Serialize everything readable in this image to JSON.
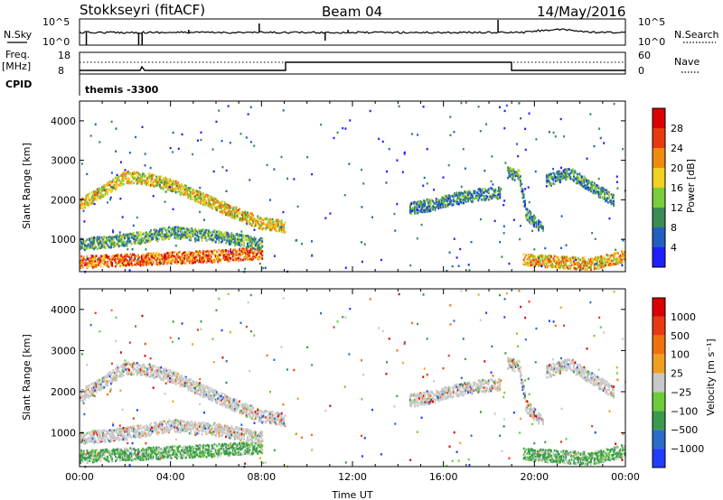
{
  "header": {
    "station": "Stokkseyri (fitACF)",
    "beam": "Beam 04",
    "date": "14/May/2016"
  },
  "noise_panel": {
    "left_label": "N.Sky",
    "left_ticks": [
      "10^5",
      "10^0"
    ],
    "right_label": "N.Search",
    "right_ticks": [
      "10^5",
      "10^0"
    ]
  },
  "freq_panel": {
    "left_label_1": "Freq.",
    "left_label_2": "[MHz]",
    "left_ticks": [
      "18",
      "8"
    ],
    "right_label": "Nave",
    "right_ticks": [
      "60",
      "0"
    ],
    "cpid_label": "CPID",
    "cpid_value": "themis -3300"
  },
  "chart_data": [
    {
      "type": "heatmap",
      "panel": "power",
      "ylabel": "Slant Range [km]",
      "xlabel": "",
      "ylim": [
        180,
        4500
      ],
      "yticks": [
        "1000",
        "2000",
        "3000",
        "4000"
      ],
      "xticks": [],
      "colorbar": {
        "label": "Power [dB]",
        "ticks": [
          "4",
          "8",
          "12",
          "16",
          "20",
          "24",
          "28"
        ],
        "colors": [
          "#1f1fff",
          "#2060c0",
          "#3a8c54",
          "#7acc3a",
          "#f0d020",
          "#f08a10",
          "#e83a10",
          "#d80000"
        ]
      },
      "bands": [
        {
          "name": "arc",
          "points": [
            [
              0,
              1900
            ],
            [
              1,
              2250
            ],
            [
              2,
              2600
            ],
            [
              3,
              2550
            ],
            [
              4,
              2400
            ],
            [
              5,
              2150
            ],
            [
              6,
              1900
            ],
            [
              7,
              1650
            ],
            [
              8,
              1420
            ],
            [
              9,
              1350
            ]
          ],
          "level": 0.55
        },
        {
          "name": "near",
          "points": [
            [
              0,
              450
            ],
            [
              2,
              500
            ],
            [
              4,
              550
            ],
            [
              6,
              600
            ],
            [
              8,
              680
            ]
          ],
          "level": 0.75
        },
        {
          "name": "mid_low",
          "points": [
            [
              0,
              900
            ],
            [
              2,
              1000
            ],
            [
              4,
              1200
            ],
            [
              6,
              1100
            ],
            [
              8,
              900
            ]
          ],
          "level": 0.35
        },
        {
          "name": "far",
          "points": [
            [
              14.5,
              1800
            ],
            [
              15.5,
              1900
            ],
            [
              16.5,
              2050
            ],
            [
              17.5,
              2150
            ],
            [
              18.5,
              2200
            ]
          ],
          "level": 0.3
        },
        {
          "name": "late1",
          "points": [
            [
              18.8,
              2700
            ],
            [
              19.3,
              2650
            ],
            [
              19.6,
              1700
            ],
            [
              20,
              1450
            ],
            [
              20.4,
              1300
            ]
          ],
          "level": 0.3
        },
        {
          "name": "late2",
          "points": [
            [
              20.5,
              2500
            ],
            [
              21.5,
              2700
            ],
            [
              22.5,
              2350
            ],
            [
              23.5,
              2000
            ]
          ],
          "level": 0.3
        },
        {
          "name": "late_near",
          "points": [
            [
              19.5,
              500
            ],
            [
              21,
              450
            ],
            [
              22.5,
              400
            ],
            [
              24,
              600
            ]
          ],
          "level": 0.6
        }
      ]
    },
    {
      "type": "heatmap",
      "panel": "velocity",
      "ylabel": "Slant Range [km]",
      "xlabel": "Time UT",
      "ylim": [
        180,
        4500
      ],
      "yticks": [
        "1000",
        "2000",
        "3000",
        "4000"
      ],
      "xticks": [
        "00:00",
        "04:00",
        "08:00",
        "12:00",
        "16:00",
        "20:00",
        "00:00"
      ],
      "colorbar": {
        "label": "Velocity [m s⁻¹]",
        "ticks": [
          "1000",
          "500",
          "100",
          "25",
          "−25",
          "−100",
          "−500",
          "−1000"
        ],
        "colors": [
          "#1f3cff",
          "#2a6cc8",
          "#3a9a4c",
          "#6ccc3a",
          "#c8c8c8",
          "#f0a020",
          "#f07010",
          "#e83a10",
          "#d80000"
        ]
      }
    }
  ],
  "time_axis": {
    "label": "Time UT",
    "ticks": [
      "00:00",
      "04:00",
      "08:00",
      "12:00",
      "16:00",
      "20:00",
      "00:00"
    ]
  }
}
